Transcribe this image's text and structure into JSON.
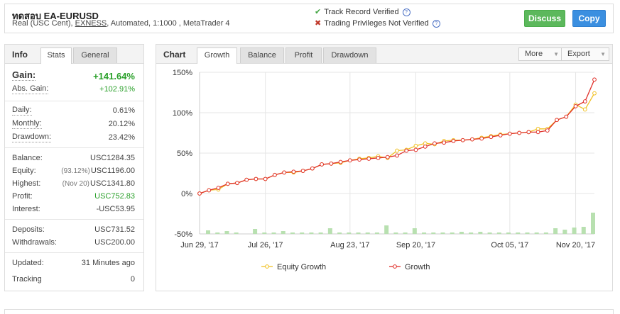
{
  "header": {
    "account_name": "ทดสอบ EA-EURUSD",
    "meta_prefix": "Real (USC Cent), ",
    "broker": "EXNESS",
    "meta_suffix": ", Automated, 1:1000 , MetaTrader 4",
    "track_record": "Track Record Verified",
    "trading_privileges": "Trading Privileges Not Verified",
    "discuss_label": "Discuss",
    "copy_label": "Copy"
  },
  "left_panel": {
    "title": "Info",
    "tabs": [
      "Stats",
      "General"
    ],
    "active_tab": "Stats",
    "gain": {
      "label": "Gain:",
      "value": "+141.64%"
    },
    "abs_gain": {
      "label": "Abs. Gain:",
      "value": "+102.91%"
    },
    "daily": {
      "label": "Daily:",
      "value": "0.61%"
    },
    "monthly": {
      "label": "Monthly:",
      "value": "20.12%"
    },
    "drawdown": {
      "label": "Drawdown:",
      "value": "23.42%"
    },
    "balance": {
      "label": "Balance:",
      "value": "USC1284.35"
    },
    "equity": {
      "label": "Equity:",
      "sub": "(93.12%)",
      "value": "USC1196.00"
    },
    "highest": {
      "label": "Highest:",
      "sub": "(Nov 20)",
      "value": "USC1341.80"
    },
    "profit": {
      "label": "Profit:",
      "value": "USC752.83"
    },
    "interest": {
      "label": "Interest:",
      "value": "-USC53.95"
    },
    "deposits": {
      "label": "Deposits:",
      "value": "USC731.52"
    },
    "withdrawals": {
      "label": "Withdrawals:",
      "value": "USC200.00"
    },
    "updated": {
      "label": "Updated:",
      "value": "31 Minutes ago"
    },
    "tracking": {
      "label": "Tracking",
      "value": "0"
    }
  },
  "chart_panel": {
    "title": "Chart",
    "tabs": [
      "Growth",
      "Balance",
      "Profit",
      "Drawdown"
    ],
    "active_tab": "Growth",
    "more_label": "More",
    "export_label": "Export"
  },
  "colors": {
    "growth": "#e0302a",
    "equity": "#f0c020",
    "bars": "#b8e0b0",
    "positive": "#2aa02a"
  },
  "chart_data": {
    "type": "line",
    "xlabel": "",
    "ylabel": "",
    "ylim": [
      -50,
      150
    ],
    "yticks": [
      "150%",
      "100%",
      "50%",
      "0%",
      "-50%"
    ],
    "ytick_values": [
      150,
      100,
      50,
      0,
      -50
    ],
    "xticks": [
      "Jun 29, '17",
      "Jul 26, '17",
      "Aug 23, '17",
      "Sep 20, '17",
      "Oct 05, '17",
      "Nov 20, '17"
    ],
    "xtick_index": [
      0,
      7,
      16,
      23,
      33,
      40
    ],
    "grid": true,
    "legend_position": "bottom",
    "series": [
      {
        "name": "Equity Growth",
        "color": "#f0c020",
        "values": [
          0,
          4,
          5,
          12,
          13,
          17,
          18,
          18,
          23,
          26,
          26,
          28,
          31,
          36,
          37,
          38,
          41,
          43,
          44,
          46,
          44,
          53,
          54,
          59,
          62,
          61,
          65,
          66,
          66,
          67,
          69,
          71,
          73,
          74,
          75,
          76,
          80,
          80,
          91,
          95,
          110,
          104,
          124
        ]
      },
      {
        "name": "Growth",
        "color": "#e0302a",
        "values": [
          0,
          4,
          7,
          12,
          13,
          17,
          18,
          18,
          23,
          26,
          27,
          28,
          31,
          36,
          37,
          39,
          41,
          42,
          43,
          44,
          45,
          47,
          53,
          54,
          58,
          62,
          63,
          65,
          66,
          67,
          68,
          70,
          72,
          74,
          75,
          76,
          76,
          78,
          91,
          95,
          108,
          114,
          141
        ]
      },
      {
        "name": "bars",
        "type": "bar",
        "color": "#b8e0b0",
        "values": [
          5,
          2,
          4,
          2,
          0,
          7,
          2,
          2,
          4,
          2,
          2,
          2,
          2,
          8,
          2,
          2,
          2,
          2,
          2,
          12,
          2,
          2,
          8,
          2,
          2,
          2,
          2,
          3,
          2,
          3,
          2,
          2,
          2,
          2,
          2,
          2,
          2,
          8,
          6,
          9,
          10,
          30
        ]
      }
    ]
  }
}
